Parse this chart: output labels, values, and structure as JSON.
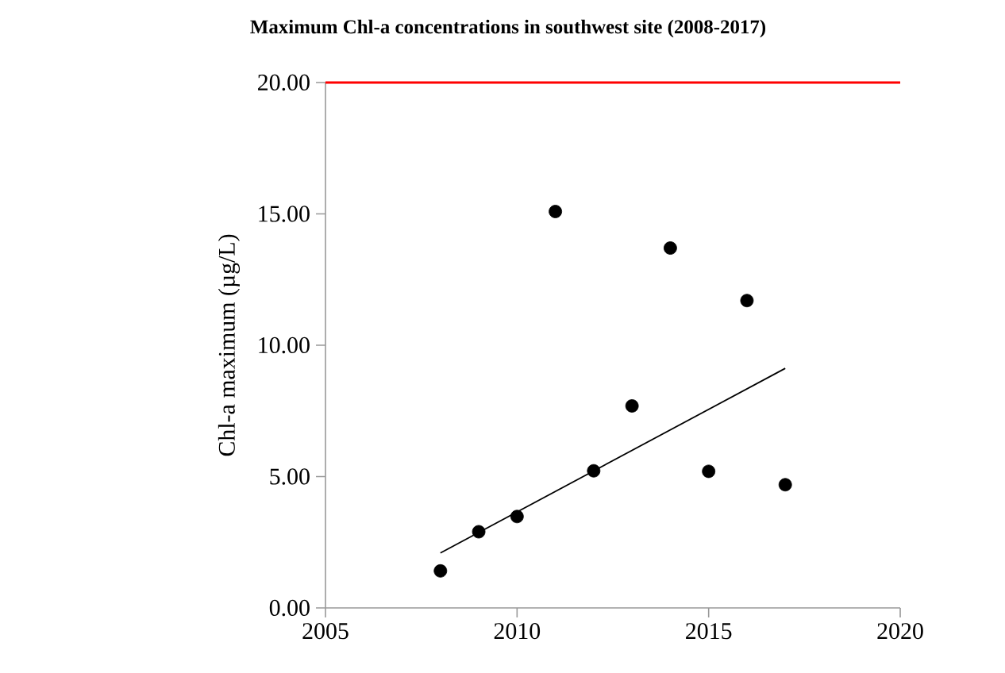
{
  "chart_data": {
    "type": "scatter",
    "title": "Maximum Chl-a concentrations in southwest site (2008-2017)",
    "ylabel": "Chl-a maximum (µg/L)",
    "x": [
      2008,
      2009,
      2010,
      2011,
      2012,
      2013,
      2014,
      2015,
      2016,
      2017
    ],
    "series": [
      {
        "color": "#000000",
        "marker": "circle",
        "values": [
          1.41,
          2.9,
          3.48,
          15.09,
          5.22,
          7.69,
          13.7,
          5.2,
          11.7,
          4.69
        ]
      },
      {
        "type": "line",
        "color": "#000000",
        "marker": "none",
        "x": [
          2008,
          2017
        ],
        "values": [
          2.09,
          9.12
        ]
      }
    ],
    "xlim": [
      2005,
      2020
    ],
    "xticks": [
      2005,
      2010,
      2015,
      2020
    ],
    "ylim": [
      0,
      20
    ],
    "yticks": [
      {
        "value": 0,
        "label": "0.00"
      },
      {
        "value": 5,
        "label": "5.00"
      },
      {
        "value": 10,
        "label": "10.00"
      },
      {
        "value": 15,
        "label": "15.00"
      },
      {
        "value": 20,
        "label": "20.00"
      }
    ],
    "ref_lines": [
      {
        "axis": "y",
        "value": 20,
        "color": "#ff0000"
      }
    ],
    "grid": false
  }
}
